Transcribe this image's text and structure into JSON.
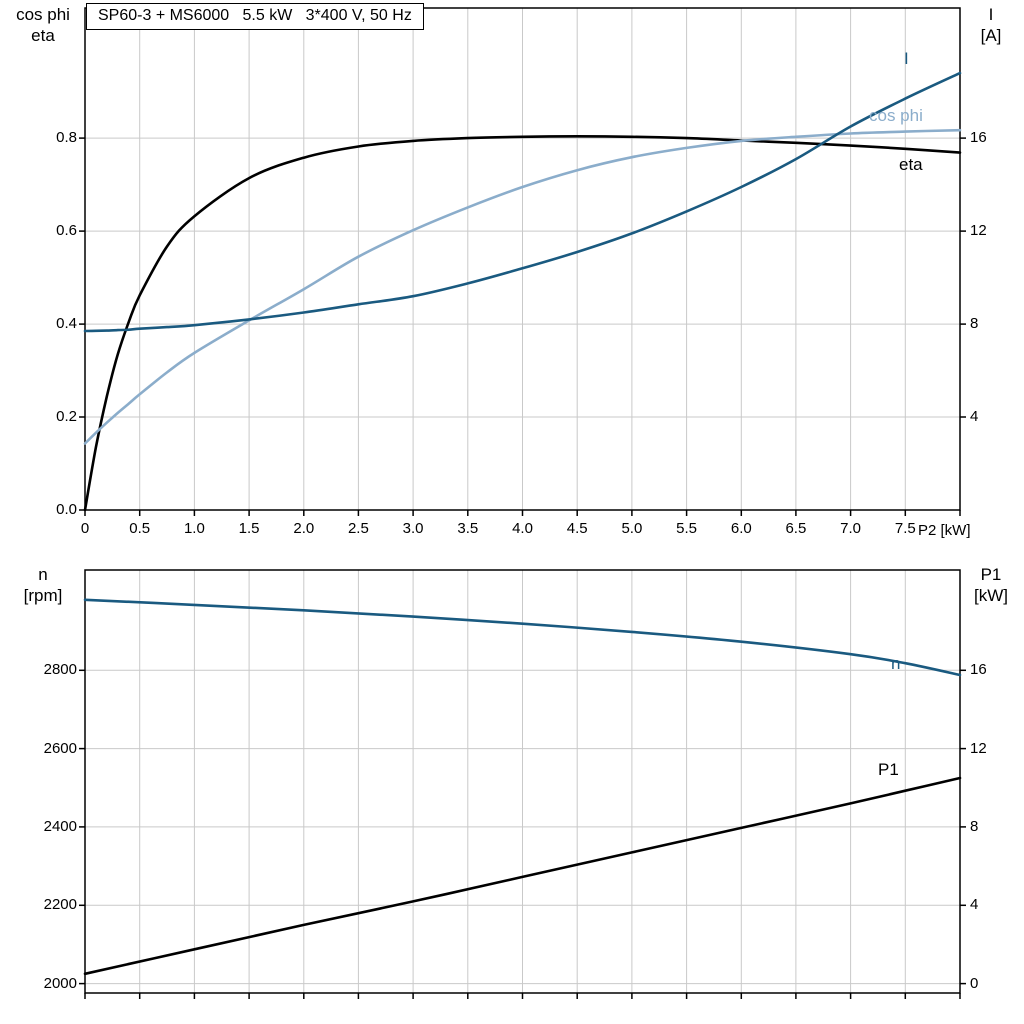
{
  "title": "SP60-3 + MS6000   5.5 kW   3*400 V, 50 Hz",
  "colors": {
    "black": "#000000",
    "dark_blue": "#1a5a80",
    "light_blue": "#8badcb",
    "grid": "#c9c9c9",
    "background": "#ffffff"
  },
  "axis_titles": {
    "top_left": [
      "cos phi",
      "eta"
    ],
    "top_right": [
      "I",
      "[A]"
    ],
    "bottom_left": [
      "n",
      "[rpm]"
    ],
    "bottom_right": [
      "P1",
      "[kW]"
    ]
  },
  "chart_data": [
    {
      "type": "line",
      "title": "SP60-3 + MS6000   5.5 kW   3*400 V, 50 Hz",
      "xlabel": "P2 [kW]",
      "grid": true,
      "legend_position": "inline-curve-labels",
      "x_range": [
        0,
        8
      ],
      "x_ticks": [
        0,
        0.5,
        1,
        1.5,
        2,
        2.5,
        3,
        3.5,
        4,
        4.5,
        5,
        5.5,
        6,
        6.5,
        7,
        7.5
      ],
      "x_tick_labels": [
        "0",
        "0.5",
        "1.0",
        "1.5",
        "2.0",
        "2.5",
        "3.0",
        "3.5",
        "4.0",
        "4.5",
        "5.0",
        "5.5",
        "6.0",
        "6.5",
        "7.0",
        "7.5"
      ],
      "x_grid": [
        0.5,
        1,
        1.5,
        2,
        2.5,
        3,
        3.5,
        4,
        4.5,
        5,
        5.5,
        6,
        6.5,
        7,
        7.5
      ],
      "left_axis": {
        "label": "cos phi / eta",
        "range": [
          0,
          1.08
        ],
        "ticks": [
          0,
          0.2,
          0.4,
          0.6,
          0.8
        ],
        "tick_labels": [
          "0.0",
          "0.2",
          "0.4",
          "0.6",
          "0.8"
        ]
      },
      "right_axis": {
        "label": "I [A]",
        "range": [
          0,
          21.6
        ],
        "ticks": [
          4,
          8,
          12,
          16
        ],
        "tick_labels": [
          "4",
          "8",
          "12",
          "16"
        ]
      },
      "x": [
        0,
        0.1,
        0.2,
        0.3,
        0.4,
        0.5,
        0.75,
        1,
        1.5,
        2,
        2.5,
        3,
        3.5,
        4,
        4.5,
        5,
        5.5,
        6,
        6.5,
        7,
        7.5,
        8
      ],
      "series": [
        {
          "name": "eta",
          "axis": "left",
          "color": "#000000",
          "values": [
            0,
            0.135,
            0.245,
            0.335,
            0.405,
            0.462,
            0.567,
            0.632,
            0.714,
            0.758,
            0.782,
            0.794,
            0.8,
            0.803,
            0.804,
            0.803,
            0.8,
            0.795,
            0.79,
            0.784,
            0.777,
            0.769
          ]
        },
        {
          "name": "cos phi",
          "axis": "left",
          "color": "#8badcb",
          "values": [
            0.143,
            0.166,
            0.188,
            0.209,
            0.229,
            0.249,
            0.296,
            0.338,
            0.408,
            0.475,
            0.545,
            0.602,
            0.651,
            0.695,
            0.731,
            0.759,
            0.779,
            0.794,
            0.803,
            0.81,
            0.814,
            0.817
          ]
        },
        {
          "name": "I",
          "axis": "right",
          "color": "#1a5a80",
          "values": [
            7.7,
            7.71,
            7.72,
            7.74,
            7.76,
            7.8,
            7.87,
            7.95,
            8.2,
            8.5,
            8.85,
            9.2,
            9.75,
            10.4,
            11.1,
            11.9,
            12.85,
            13.9,
            15.1,
            16.5,
            17.7,
            18.8
          ]
        }
      ]
    },
    {
      "type": "line",
      "title": "",
      "xlabel": "",
      "grid": true,
      "legend_position": "inline-curve-labels",
      "x_range": [
        0,
        8
      ],
      "x_ticks": [],
      "x_tick_labels": [],
      "x_grid": [
        0.5,
        1,
        1.5,
        2,
        2.5,
        3,
        3.5,
        4,
        4.5,
        5,
        5.5,
        6,
        6.5,
        7,
        7.5
      ],
      "left_axis": {
        "label": "n [rpm]",
        "range": [
          1976,
          3056
        ],
        "ticks": [
          2000,
          2200,
          2400,
          2600,
          2800
        ],
        "tick_labels": [
          "2000",
          "2200",
          "2400",
          "2600",
          "2800"
        ]
      },
      "right_axis": {
        "label": "P1 [kW]",
        "range": [
          -0.48,
          21.12
        ],
        "ticks": [
          0,
          4,
          8,
          12,
          16
        ],
        "tick_labels": [
          "0",
          "4",
          "8",
          "12",
          "16"
        ]
      },
      "x": [
        0,
        1,
        2,
        3,
        4,
        5,
        6,
        7,
        7.5,
        8
      ],
      "series": [
        {
          "name": "n",
          "axis": "left",
          "color": "#1a5a80",
          "values": [
            2980,
            2967,
            2953,
            2937,
            2919,
            2898,
            2873,
            2841,
            2818,
            2788
          ]
        },
        {
          "name": "P1",
          "axis": "right",
          "color": "#000000",
          "values": [
            0.5,
            1.75,
            3.0,
            4.2,
            5.45,
            6.7,
            7.95,
            9.2,
            9.85,
            10.5
          ]
        }
      ]
    }
  ]
}
